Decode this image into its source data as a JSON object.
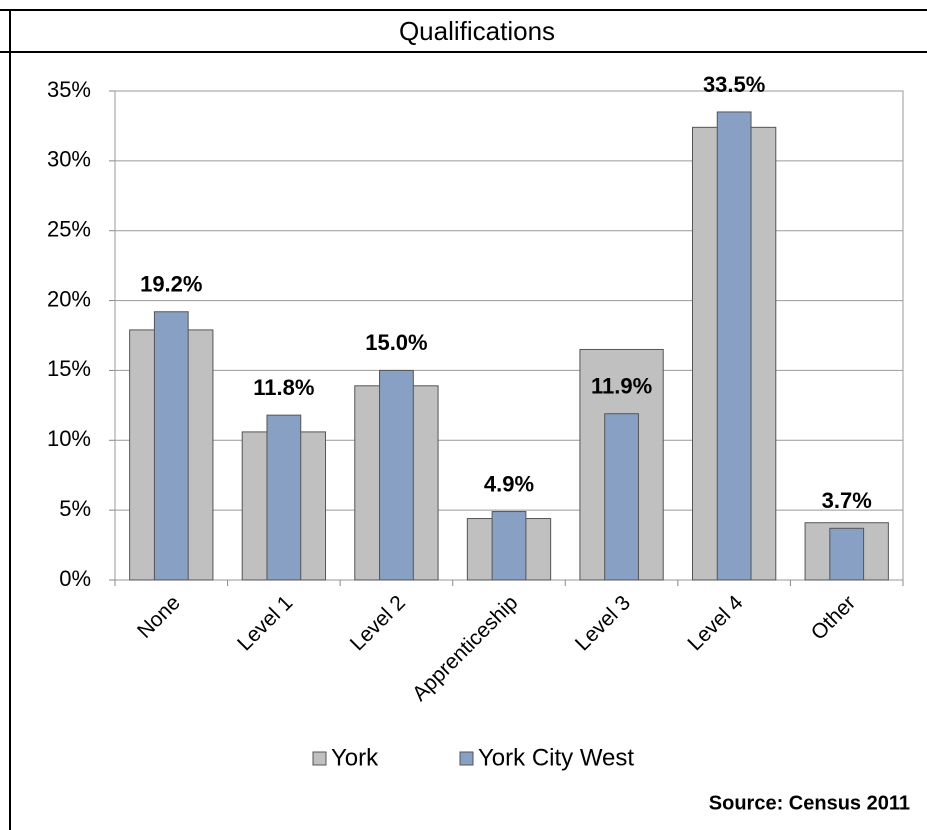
{
  "chart_data": {
    "type": "bar",
    "title": "Qualifications",
    "source": "Source: Census 2011",
    "categories": [
      "None",
      "Level 1",
      "Level 2",
      "Apprenticeship",
      "Level 3",
      "Level 4",
      "Other"
    ],
    "series": [
      {
        "name": "York",
        "color": "#c0c0c0",
        "values": [
          17.9,
          10.6,
          13.9,
          4.4,
          16.5,
          32.4,
          4.1
        ]
      },
      {
        "name": "York City West",
        "color": "#87a0c4",
        "values": [
          19.2,
          11.8,
          15.0,
          4.9,
          11.9,
          33.5,
          3.7
        ],
        "value_labels": [
          "19.2%",
          "11.8%",
          "15.0%",
          "4.9%",
          "11.9%",
          "33.5%",
          "3.7%"
        ]
      }
    ],
    "ylim": [
      0,
      35
    ],
    "yticks": [
      {
        "value": 0,
        "label": "0%"
      },
      {
        "value": 5,
        "label": "5%"
      },
      {
        "value": 10,
        "label": "10%"
      },
      {
        "value": 15,
        "label": "15%"
      },
      {
        "value": 20,
        "label": "20%"
      },
      {
        "value": 25,
        "label": "25%"
      },
      {
        "value": 30,
        "label": "30%"
      },
      {
        "value": 35,
        "label": "35%"
      }
    ],
    "grid": true
  }
}
